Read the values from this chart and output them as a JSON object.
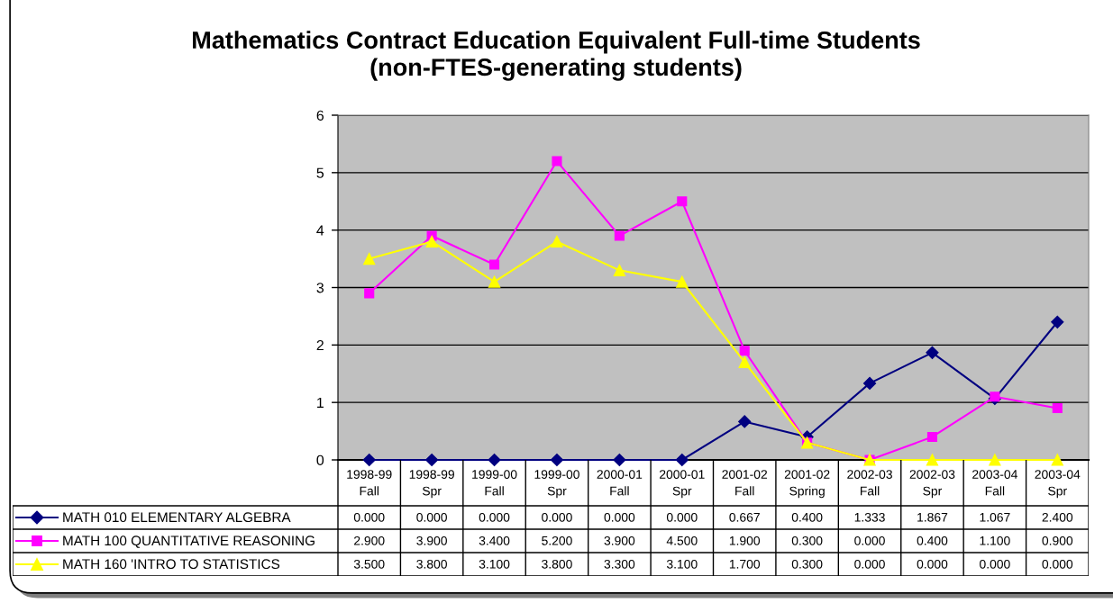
{
  "chart_data": {
    "type": "line",
    "title": "Mathematics Contract Education Equivalent Full-time Students\n(non-FTES-generating students)",
    "categories": [
      "1998-99\nFall",
      "1998-99\nSpr",
      "1999-00\nFall",
      "1999-00\nSpr",
      "2000-01\nFall",
      "2000-01\nSpr",
      "2001-02\nFall",
      "2001-02\nSpring",
      "2002-03\nFall",
      "2002-03\nSpr",
      "2003-04\nFall",
      "2003-04\nSpr"
    ],
    "series": [
      {
        "name": "MATH 010 ELEMENTARY ALGEBRA",
        "color": "#000080",
        "marker": "diamond",
        "values": [
          0,
          0,
          0,
          0,
          0,
          0,
          0.667,
          0.4,
          1.333,
          1.867,
          1.067,
          2.4
        ],
        "value_labels": [
          "0.000",
          "0.000",
          "0.000",
          "0.000",
          "0.000",
          "0.000",
          "0.667",
          "0.400",
          "1.333",
          "1.867",
          "1.067",
          "2.400"
        ]
      },
      {
        "name": "MATH 100 QUANTITATIVE REASONING",
        "color": "#ff00ff",
        "marker": "square",
        "values": [
          2.9,
          3.9,
          3.4,
          5.2,
          3.9,
          4.5,
          1.9,
          0.3,
          0,
          0.4,
          1.1,
          0.9
        ],
        "value_labels": [
          "2.900",
          "3.900",
          "3.400",
          "5.200",
          "3.900",
          "4.500",
          "1.900",
          "0.300",
          "0.000",
          "0.400",
          "1.100",
          "0.900"
        ]
      },
      {
        "name": "MATH 160 'INTRO TO STATISTICS",
        "color": "#ffff00",
        "marker": "triangle",
        "values": [
          3.5,
          3.8,
          3.1,
          3.8,
          3.3,
          3.1,
          1.7,
          0.3,
          0,
          0,
          0,
          0
        ],
        "value_labels": [
          "3.500",
          "3.800",
          "3.100",
          "3.800",
          "3.300",
          "3.100",
          "1.700",
          "0.300",
          "0.000",
          "0.000",
          "0.000",
          "0.000"
        ]
      }
    ],
    "ylim": [
      0,
      6
    ],
    "yticks": [
      0,
      1,
      2,
      3,
      4,
      5,
      6
    ],
    "grid": "y",
    "legend": "bottom left",
    "line_style": "solid"
  }
}
